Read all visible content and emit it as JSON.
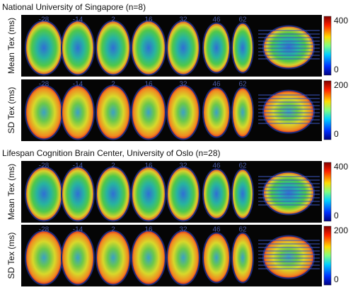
{
  "sections": [
    {
      "title": "National University of Singapore (n=8)",
      "rows": [
        {
          "label": "Mean Tex (ms)",
          "colorbar": {
            "max": 400,
            "min": 0
          }
        },
        {
          "label": "SD Tex (ms)",
          "colorbar": {
            "max": 200,
            "min": 0
          }
        }
      ]
    },
    {
      "title": "Lifespan Cognition Brain Center, University of Oslo (n=28)",
      "rows": [
        {
          "label": "Mean Tex (ms)",
          "colorbar": {
            "max": 400,
            "min": 0
          }
        },
        {
          "label": "SD Tex (ms)",
          "colorbar": {
            "max": 200,
            "min": 0
          }
        }
      ]
    }
  ],
  "slice_labels": [
    "-28",
    "-14",
    "2",
    "16",
    "32",
    "46",
    "62"
  ]
}
